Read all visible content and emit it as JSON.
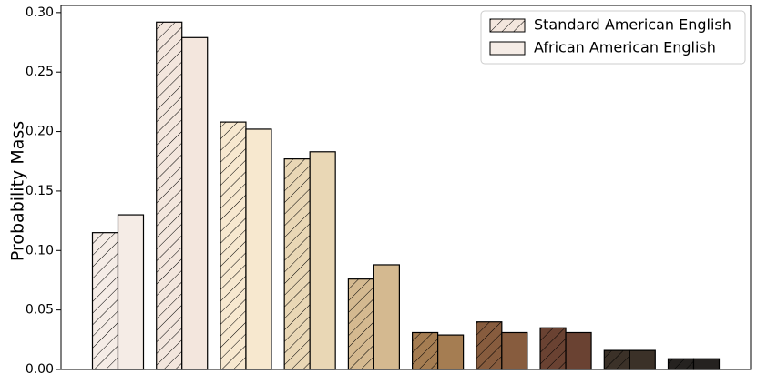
{
  "chart_data": {
    "type": "grouped_bar",
    "ylabel": "Probability Mass",
    "categories": [
      null,
      null,
      null,
      null,
      null,
      null,
      null,
      null,
      null,
      null
    ],
    "category_colors": [
      "#f5ece6",
      "#f3e6dd",
      "#f7e8cf",
      "#e9d7b5",
      "#d4b990",
      "#a57d52",
      "#875c3e",
      "#6a4232",
      "#3b3128",
      "#252220"
    ],
    "series": [
      {
        "name": "Standard American English",
        "color": "#f3e6dd",
        "hatch": true,
        "values": [
          0.115,
          0.292,
          0.208,
          0.177,
          0.076,
          0.031,
          0.04,
          0.035,
          0.016,
          0.009
        ]
      },
      {
        "name": "African American English",
        "color": "#f5ece6",
        "hatch": false,
        "values": [
          0.13,
          0.279,
          0.202,
          0.183,
          0.088,
          0.029,
          0.031,
          0.031,
          0.016,
          0.009
        ]
      }
    ],
    "ylim": [
      0,
      0.306
    ],
    "yticks": [
      {
        "value": 0,
        "label": "0.00"
      },
      {
        "value": 0.05,
        "label": "0.05"
      },
      {
        "value": 0.1,
        "label": "0.10"
      },
      {
        "value": 0.15,
        "label": "0.15"
      },
      {
        "value": 0.2,
        "label": "0.20"
      },
      {
        "value": 0.25,
        "label": "0.25"
      },
      {
        "value": 0.3,
        "label": "0.30"
      }
    ],
    "grid": false,
    "legend": "upper right"
  }
}
